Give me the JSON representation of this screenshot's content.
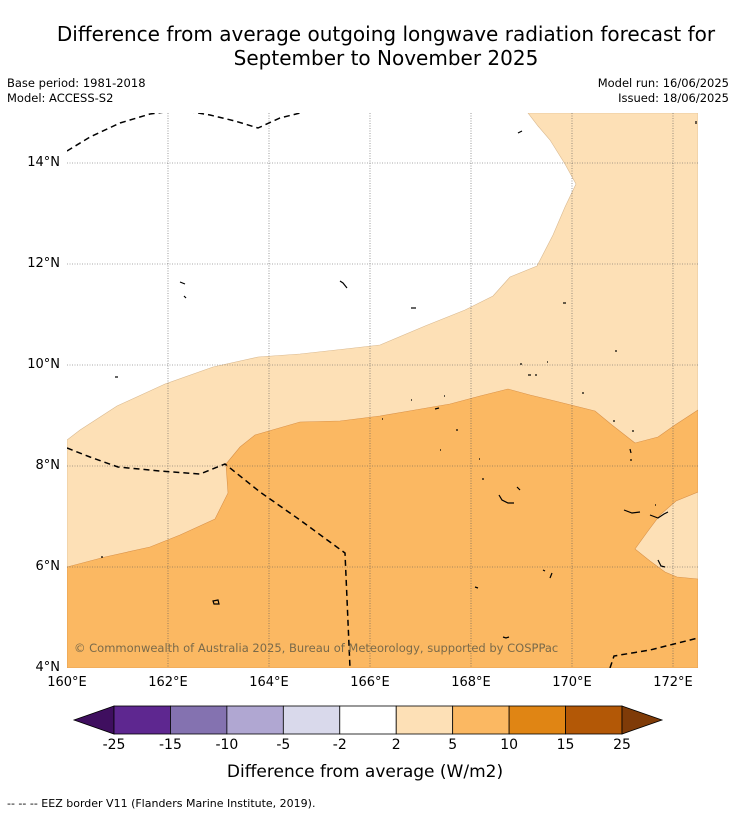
{
  "title_line1": "Difference from average outgoing longwave radiation forecast for",
  "title_line2": "September to November 2025",
  "meta": {
    "base_period": "Base period: 1981-2018",
    "model": "Model: ACCESS-S2",
    "model_run": "Model run: 16/06/2025",
    "issued": "Issued: 18/06/2025"
  },
  "map": {
    "lat_labels": [
      "14°N",
      "12°N",
      "10°N",
      "8°N",
      "6°N",
      "4°N"
    ],
    "lon_labels": [
      "160°E",
      "162°E",
      "164°E",
      "166°E",
      "168°E",
      "170°E",
      "172°E"
    ],
    "credit": "© Commonwealth of Australia 2025, Bureau of Meteorology, supported by COSPPac",
    "colors": {
      "band_2_5": "#fde0b6",
      "band_5_10": "#fbb862",
      "border": "#000000"
    }
  },
  "colorbar": {
    "tick_labels": [
      "-25",
      "-15",
      "-10",
      "-5",
      "-2",
      "2",
      "5",
      "10",
      "15",
      "25"
    ],
    "colors": [
      "#3f0f5f",
      "#5e2790",
      "#8472b0",
      "#b0a7d2",
      "#d9d9eb",
      "#ffffff",
      "#fde0b6",
      "#fbb862",
      "#e08514",
      "#b35806",
      "#7f3b08"
    ],
    "label": "Difference from average (W/m2)"
  },
  "footer": "--  --  -- EEZ border V11 (Flanders Marine Institute, 2019)."
}
